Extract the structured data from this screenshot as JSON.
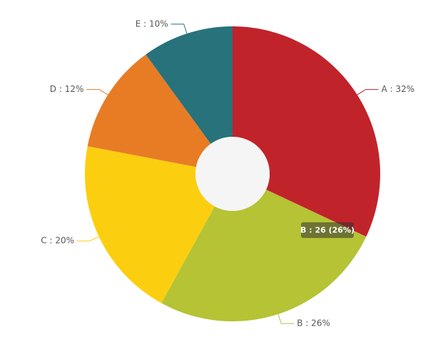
{
  "chart_data": {
    "type": "pie",
    "values": [
      32,
      26,
      20,
      12,
      10
    ],
    "value_labels": [
      "A : 32%",
      "B : 26%",
      "C : 20%",
      "D : 12%",
      "E : 10%"
    ],
    "colors": [
      "#c1232b",
      "#b5c334",
      "#fcce10",
      "#e87c25",
      "#27727b"
    ],
    "tooltip": "B : 26 (26%)"
  }
}
